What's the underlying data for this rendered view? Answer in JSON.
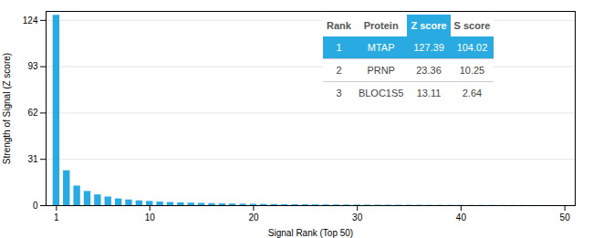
{
  "chart_data": {
    "type": "bar",
    "xlabel": "Signal Rank (Top 50)",
    "ylabel": "Strength of Signal (Z score)",
    "x": [
      1,
      2,
      3,
      4,
      5,
      6,
      7,
      8,
      9,
      10,
      11,
      12,
      13,
      14,
      15,
      16,
      17,
      18,
      19,
      20,
      21,
      22,
      23,
      24,
      25,
      26,
      27,
      28,
      29,
      30,
      31,
      32,
      33,
      34,
      35,
      36,
      37,
      38,
      39,
      40,
      41,
      42,
      43,
      44,
      45,
      46,
      47,
      48,
      49,
      50
    ],
    "values": [
      127.39,
      23.36,
      13.11,
      9.5,
      7.2,
      5.8,
      4.5,
      3.8,
      3.2,
      2.8,
      2.4,
      2.1,
      1.9,
      1.7,
      1.5,
      1.35,
      1.2,
      1.1,
      1.0,
      0.9,
      0.82,
      0.75,
      0.68,
      0.62,
      0.57,
      0.52,
      0.48,
      0.44,
      0.41,
      0.38,
      0.35,
      0.32,
      0.3,
      0.28,
      0.26,
      0.24,
      0.22,
      0.2,
      0.19,
      0.18,
      0.17,
      0.16,
      0.15,
      0.14,
      0.13,
      0.12,
      0.11,
      0.1,
      0.09,
      0.08
    ],
    "color": "#29ABE2",
    "xlim": [
      0,
      51
    ],
    "xticks": [
      1,
      10,
      20,
      30,
      40,
      50
    ],
    "ylim": [
      0,
      130
    ],
    "yticks": [
      0,
      31,
      62,
      93,
      124
    ],
    "grid": true,
    "table": {
      "columns": [
        "Rank",
        "Protein",
        "Z score",
        "S score"
      ],
      "rows": [
        [
          "1",
          "MTAP",
          "127.39",
          "104.02"
        ],
        [
          "2",
          "PRNP",
          "23.36",
          "10.25"
        ],
        [
          "3",
          "BLOC1S5",
          "13.11",
          "2.64"
        ]
      ],
      "color": "#29ABE2"
    }
  }
}
